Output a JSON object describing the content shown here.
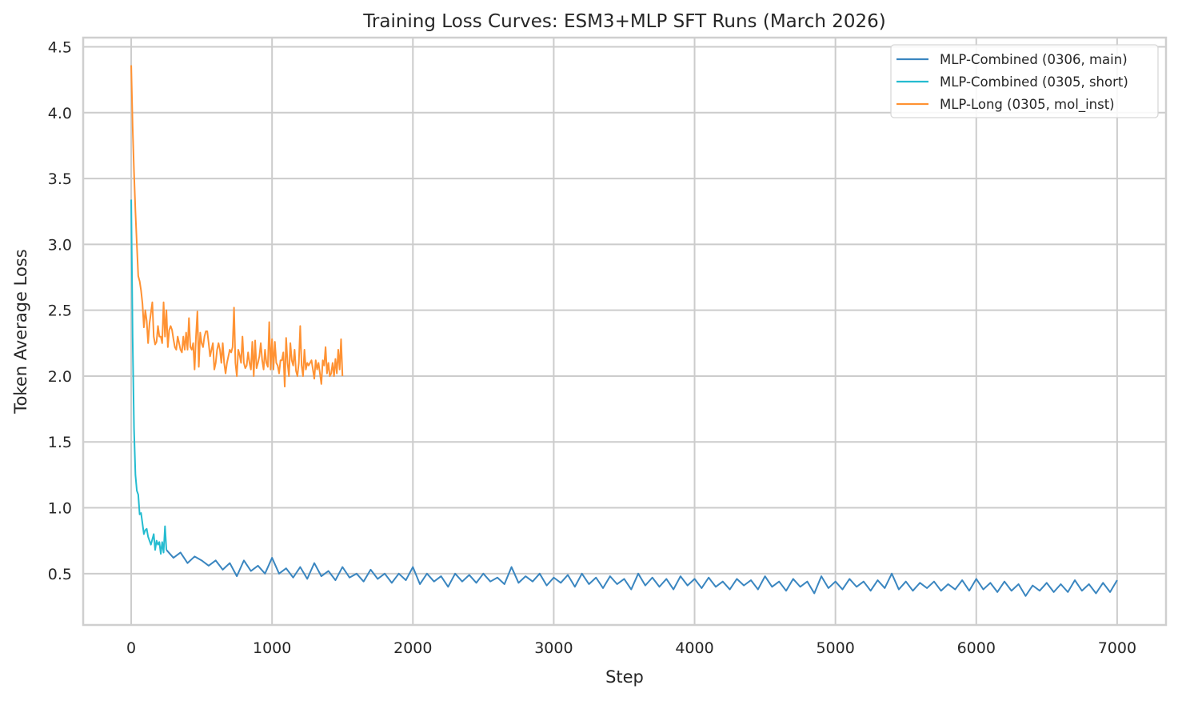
{
  "chart_data": {
    "type": "line",
    "title": "Training Loss Curves: ESM3+MLP SFT Runs (March 2026)",
    "xlabel": "Step",
    "ylabel": "Token Average Loss",
    "xlim": [
      -341,
      7347
    ],
    "ylim": [
      0.11,
      4.57
    ],
    "xticks": [
      0,
      1000,
      2000,
      3000,
      4000,
      5000,
      6000,
      7000
    ],
    "xtick_labels": [
      "0",
      "1000",
      "2000",
      "3000",
      "4000",
      "5000",
      "6000",
      "7000"
    ],
    "yticks": [
      0.5,
      1.0,
      1.5,
      2.0,
      2.5,
      3.0,
      3.5,
      4.0,
      4.5
    ],
    "ytick_labels": [
      "0.5",
      "1.0",
      "1.5",
      "2.0",
      "2.5",
      "3.0",
      "3.5",
      "4.0",
      "4.5"
    ],
    "grid": true,
    "legend_placement": "top-right",
    "series": [
      {
        "name": "MLP-Combined (0306, main)",
        "color": "#3a86c0",
        "points": [
          [
            250,
            0.68
          ],
          [
            300,
            0.62
          ],
          [
            350,
            0.66
          ],
          [
            400,
            0.58
          ],
          [
            450,
            0.63
          ],
          [
            500,
            0.6
          ],
          [
            550,
            0.56
          ],
          [
            600,
            0.6
          ],
          [
            650,
            0.53
          ],
          [
            700,
            0.58
          ],
          [
            750,
            0.48
          ],
          [
            800,
            0.6
          ],
          [
            850,
            0.52
          ],
          [
            900,
            0.56
          ],
          [
            950,
            0.5
          ],
          [
            1000,
            0.62
          ],
          [
            1050,
            0.5
          ],
          [
            1100,
            0.54
          ],
          [
            1150,
            0.47
          ],
          [
            1200,
            0.55
          ],
          [
            1250,
            0.46
          ],
          [
            1300,
            0.58
          ],
          [
            1350,
            0.48
          ],
          [
            1400,
            0.52
          ],
          [
            1450,
            0.45
          ],
          [
            1500,
            0.55
          ],
          [
            1550,
            0.47
          ],
          [
            1600,
            0.5
          ],
          [
            1650,
            0.44
          ],
          [
            1700,
            0.53
          ],
          [
            1750,
            0.46
          ],
          [
            1800,
            0.5
          ],
          [
            1850,
            0.43
          ],
          [
            1900,
            0.5
          ],
          [
            1950,
            0.45
          ],
          [
            2000,
            0.55
          ],
          [
            2050,
            0.42
          ],
          [
            2100,
            0.5
          ],
          [
            2150,
            0.44
          ],
          [
            2200,
            0.48
          ],
          [
            2250,
            0.4
          ],
          [
            2300,
            0.5
          ],
          [
            2350,
            0.44
          ],
          [
            2400,
            0.49
          ],
          [
            2450,
            0.43
          ],
          [
            2500,
            0.5
          ],
          [
            2550,
            0.44
          ],
          [
            2600,
            0.47
          ],
          [
            2650,
            0.42
          ],
          [
            2700,
            0.55
          ],
          [
            2750,
            0.43
          ],
          [
            2800,
            0.48
          ],
          [
            2850,
            0.44
          ],
          [
            2900,
            0.5
          ],
          [
            2950,
            0.41
          ],
          [
            3000,
            0.47
          ],
          [
            3050,
            0.43
          ],
          [
            3100,
            0.49
          ],
          [
            3150,
            0.4
          ],
          [
            3200,
            0.5
          ],
          [
            3250,
            0.42
          ],
          [
            3300,
            0.47
          ],
          [
            3350,
            0.39
          ],
          [
            3400,
            0.48
          ],
          [
            3450,
            0.42
          ],
          [
            3500,
            0.46
          ],
          [
            3550,
            0.38
          ],
          [
            3600,
            0.5
          ],
          [
            3650,
            0.41
          ],
          [
            3700,
            0.47
          ],
          [
            3750,
            0.4
          ],
          [
            3800,
            0.46
          ],
          [
            3850,
            0.38
          ],
          [
            3900,
            0.48
          ],
          [
            3950,
            0.41
          ],
          [
            4000,
            0.46
          ],
          [
            4050,
            0.39
          ],
          [
            4100,
            0.47
          ],
          [
            4150,
            0.4
          ],
          [
            4200,
            0.44
          ],
          [
            4250,
            0.38
          ],
          [
            4300,
            0.46
          ],
          [
            4350,
            0.41
          ],
          [
            4400,
            0.45
          ],
          [
            4450,
            0.38
          ],
          [
            4500,
            0.48
          ],
          [
            4550,
            0.4
          ],
          [
            4600,
            0.44
          ],
          [
            4650,
            0.37
          ],
          [
            4700,
            0.46
          ],
          [
            4750,
            0.4
          ],
          [
            4800,
            0.44
          ],
          [
            4850,
            0.35
          ],
          [
            4900,
            0.48
          ],
          [
            4950,
            0.39
          ],
          [
            5000,
            0.44
          ],
          [
            5050,
            0.38
          ],
          [
            5100,
            0.46
          ],
          [
            5150,
            0.4
          ],
          [
            5200,
            0.44
          ],
          [
            5250,
            0.37
          ],
          [
            5300,
            0.45
          ],
          [
            5350,
            0.39
          ],
          [
            5400,
            0.5
          ],
          [
            5450,
            0.38
          ],
          [
            5500,
            0.44
          ],
          [
            5550,
            0.37
          ],
          [
            5600,
            0.43
          ],
          [
            5650,
            0.39
          ],
          [
            5700,
            0.44
          ],
          [
            5750,
            0.37
          ],
          [
            5800,
            0.42
          ],
          [
            5850,
            0.38
          ],
          [
            5900,
            0.45
          ],
          [
            5950,
            0.37
          ],
          [
            6000,
            0.46
          ],
          [
            6050,
            0.38
          ],
          [
            6100,
            0.43
          ],
          [
            6150,
            0.36
          ],
          [
            6200,
            0.44
          ],
          [
            6250,
            0.37
          ],
          [
            6300,
            0.42
          ],
          [
            6350,
            0.33
          ],
          [
            6400,
            0.41
          ],
          [
            6450,
            0.37
          ],
          [
            6500,
            0.43
          ],
          [
            6550,
            0.36
          ],
          [
            6600,
            0.42
          ],
          [
            6650,
            0.36
          ],
          [
            6700,
            0.45
          ],
          [
            6750,
            0.37
          ],
          [
            6800,
            0.42
          ],
          [
            6850,
            0.35
          ],
          [
            6900,
            0.43
          ],
          [
            6950,
            0.36
          ],
          [
            7000,
            0.45
          ]
        ]
      },
      {
        "name": "MLP-Combined (0305, short)",
        "color": "#25bcd0",
        "points": [
          [
            0,
            3.34
          ],
          [
            10,
            2.3
          ],
          [
            20,
            1.6
          ],
          [
            30,
            1.25
          ],
          [
            40,
            1.13
          ],
          [
            50,
            1.1
          ],
          [
            60,
            0.95
          ],
          [
            70,
            0.96
          ],
          [
            80,
            0.88
          ],
          [
            90,
            0.8
          ],
          [
            100,
            0.83
          ],
          [
            110,
            0.84
          ],
          [
            120,
            0.78
          ],
          [
            130,
            0.75
          ],
          [
            140,
            0.72
          ],
          [
            150,
            0.76
          ],
          [
            160,
            0.8
          ],
          [
            170,
            0.68
          ],
          [
            180,
            0.75
          ],
          [
            190,
            0.72
          ],
          [
            200,
            0.74
          ],
          [
            210,
            0.65
          ],
          [
            220,
            0.74
          ],
          [
            230,
            0.66
          ],
          [
            240,
            0.86
          ],
          [
            250,
            0.68
          ]
        ]
      },
      {
        "name": "MLP-Long (0305, mol_inst)",
        "color": "#ff9233",
        "points": [
          [
            0,
            4.36
          ],
          [
            10,
            3.9
          ],
          [
            20,
            3.55
          ],
          [
            30,
            3.25
          ],
          [
            40,
            3.0
          ],
          [
            50,
            2.76
          ],
          [
            60,
            2.72
          ],
          [
            70,
            2.65
          ],
          [
            80,
            2.55
          ],
          [
            90,
            2.37
          ],
          [
            100,
            2.5
          ],
          [
            110,
            2.42
          ],
          [
            120,
            2.25
          ],
          [
            130,
            2.4
          ],
          [
            140,
            2.48
          ],
          [
            150,
            2.56
          ],
          [
            160,
            2.3
          ],
          [
            170,
            2.24
          ],
          [
            180,
            2.26
          ],
          [
            190,
            2.38
          ],
          [
            200,
            2.3
          ],
          [
            210,
            2.3
          ],
          [
            220,
            2.25
          ],
          [
            230,
            2.56
          ],
          [
            240,
            2.3
          ],
          [
            250,
            2.5
          ],
          [
            260,
            2.22
          ],
          [
            270,
            2.35
          ],
          [
            280,
            2.38
          ],
          [
            290,
            2.35
          ],
          [
            300,
            2.28
          ],
          [
            310,
            2.22
          ],
          [
            320,
            2.2
          ],
          [
            330,
            2.3
          ],
          [
            340,
            2.25
          ],
          [
            350,
            2.2
          ],
          [
            360,
            2.18
          ],
          [
            370,
            2.3
          ],
          [
            380,
            2.2
          ],
          [
            390,
            2.33
          ],
          [
            400,
            2.2
          ],
          [
            410,
            2.44
          ],
          [
            420,
            2.22
          ],
          [
            430,
            2.2
          ],
          [
            440,
            2.25
          ],
          [
            450,
            2.05
          ],
          [
            460,
            2.3
          ],
          [
            470,
            2.49
          ],
          [
            480,
            2.07
          ],
          [
            490,
            2.33
          ],
          [
            500,
            2.25
          ],
          [
            510,
            2.22
          ],
          [
            520,
            2.3
          ],
          [
            530,
            2.34
          ],
          [
            540,
            2.34
          ],
          [
            550,
            2.25
          ],
          [
            560,
            2.15
          ],
          [
            570,
            2.2
          ],
          [
            580,
            2.25
          ],
          [
            590,
            2.05
          ],
          [
            600,
            2.1
          ],
          [
            610,
            2.2
          ],
          [
            620,
            2.25
          ],
          [
            630,
            2.2
          ],
          [
            640,
            2.1
          ],
          [
            650,
            2.25
          ],
          [
            660,
            2.1
          ],
          [
            670,
            2.02
          ],
          [
            680,
            2.1
          ],
          [
            690,
            2.15
          ],
          [
            700,
            2.2
          ],
          [
            710,
            2.18
          ],
          [
            720,
            2.22
          ],
          [
            730,
            2.52
          ],
          [
            740,
            2.1
          ],
          [
            750,
            2.0
          ],
          [
            760,
            2.2
          ],
          [
            770,
            2.16
          ],
          [
            780,
            2.1
          ],
          [
            790,
            2.3
          ],
          [
            800,
            2.1
          ],
          [
            810,
            2.06
          ],
          [
            820,
            2.08
          ],
          [
            830,
            2.18
          ],
          [
            840,
            2.1
          ],
          [
            850,
            2.05
          ],
          [
            860,
            2.26
          ],
          [
            870,
            2.0
          ],
          [
            880,
            2.27
          ],
          [
            890,
            2.06
          ],
          [
            900,
            2.1
          ],
          [
            910,
            2.15
          ],
          [
            920,
            2.25
          ],
          [
            930,
            2.12
          ],
          [
            940,
            2.05
          ],
          [
            950,
            2.2
          ],
          [
            960,
            2.1
          ],
          [
            970,
            2.07
          ],
          [
            980,
            2.41
          ],
          [
            990,
            2.05
          ],
          [
            1000,
            2.28
          ],
          [
            1010,
            2.05
          ],
          [
            1020,
            2.26
          ],
          [
            1030,
            2.1
          ],
          [
            1040,
            2.08
          ],
          [
            1050,
            2.02
          ],
          [
            1060,
            2.12
          ],
          [
            1070,
            2.12
          ],
          [
            1080,
            2.18
          ],
          [
            1090,
            1.92
          ],
          [
            1100,
            2.29
          ],
          [
            1110,
            2.1
          ],
          [
            1120,
            2.0
          ],
          [
            1130,
            2.25
          ],
          [
            1140,
            2.12
          ],
          [
            1150,
            2.08
          ],
          [
            1160,
            2.2
          ],
          [
            1170,
            2.04
          ],
          [
            1180,
            2.0
          ],
          [
            1190,
            2.1
          ],
          [
            1200,
            2.38
          ],
          [
            1210,
            2.08
          ],
          [
            1220,
            2.0
          ],
          [
            1230,
            2.2
          ],
          [
            1240,
            2.05
          ],
          [
            1250,
            2.1
          ],
          [
            1260,
            2.08
          ],
          [
            1270,
            2.1
          ],
          [
            1280,
            2.12
          ],
          [
            1290,
            2.05
          ],
          [
            1300,
            1.98
          ],
          [
            1310,
            2.12
          ],
          [
            1320,
            2.05
          ],
          [
            1330,
            2.1
          ],
          [
            1340,
            2.02
          ],
          [
            1350,
            1.94
          ],
          [
            1360,
            2.12
          ],
          [
            1370,
            2.08
          ],
          [
            1380,
            2.22
          ],
          [
            1390,
            2.02
          ],
          [
            1400,
            2.1
          ],
          [
            1410,
            2.0
          ],
          [
            1420,
            2.02
          ],
          [
            1430,
            2.1
          ],
          [
            1440,
            2.0
          ],
          [
            1450,
            2.13
          ],
          [
            1460,
            2.02
          ],
          [
            1470,
            2.2
          ],
          [
            1480,
            2.05
          ],
          [
            1490,
            2.28
          ],
          [
            1500,
            2.0
          ]
        ]
      }
    ]
  }
}
